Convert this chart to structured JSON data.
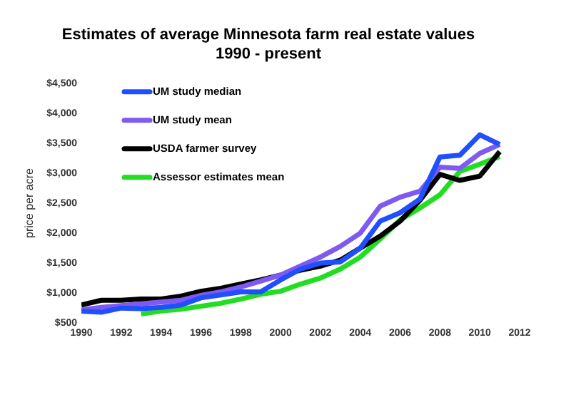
{
  "chart_data": {
    "type": "line",
    "title": "Estimates of average Minnesota farm real estate values\n1990 - present",
    "ylabel": "price per acre",
    "x": [
      1990,
      1991,
      1992,
      1993,
      1994,
      1995,
      1996,
      1997,
      1998,
      1999,
      2000,
      2001,
      2002,
      2003,
      2004,
      2005,
      2006,
      2007,
      2008,
      2009,
      2010,
      2011
    ],
    "series": [
      {
        "name": "UM study median",
        "color": "#1f4fff",
        "values": [
          700,
          680,
          750,
          740,
          760,
          800,
          920,
          970,
          1020,
          1020,
          1220,
          1400,
          1500,
          1520,
          1750,
          2200,
          2340,
          2570,
          3270,
          3300,
          3640,
          3480
        ]
      },
      {
        "name": "UM study mean",
        "color": "#7f5af0",
        "values": [
          720,
          760,
          790,
          820,
          850,
          880,
          960,
          1020,
          1100,
          1200,
          1300,
          1450,
          1600,
          1780,
          2000,
          2450,
          2600,
          2700,
          3100,
          3080,
          3330,
          3480
        ]
      },
      {
        "name": "USDA farmer survey",
        "color": "#000000",
        "values": [
          800,
          880,
          880,
          900,
          900,
          950,
          1030,
          1080,
          1150,
          1220,
          1300,
          1380,
          1450,
          1550,
          1750,
          1950,
          2200,
          2550,
          2980,
          2880,
          2950,
          3360
        ]
      },
      {
        "name": "Assessor estimates mean",
        "color": "#22dd22",
        "values": [
          null,
          null,
          null,
          650,
          700,
          730,
          780,
          830,
          900,
          980,
          1030,
          1150,
          1250,
          1400,
          1600,
          1900,
          2220,
          2420,
          2640,
          3030,
          3150,
          3280
        ]
      }
    ],
    "xlim": [
      1990,
      2012
    ],
    "xticks": [
      1990,
      1992,
      1994,
      1996,
      1998,
      2000,
      2002,
      2004,
      2006,
      2008,
      2010,
      2012
    ],
    "ylim": [
      500,
      4500
    ],
    "yticks": [
      {
        "value": 500,
        "label": "$500"
      },
      {
        "value": 1000,
        "label": "$1,000"
      },
      {
        "value": 1500,
        "label": "$1,500"
      },
      {
        "value": 2000,
        "label": "$2,000"
      },
      {
        "value": 2500,
        "label": "$2,500"
      },
      {
        "value": 3000,
        "label": "$3,000"
      },
      {
        "value": 3500,
        "label": "$3,500"
      },
      {
        "value": 4000,
        "label": "$4,000"
      },
      {
        "value": 4500,
        "label": "$4,500"
      }
    ],
    "grid": false,
    "legend": "top left",
    "marker": "none",
    "line_style": "solid"
  }
}
